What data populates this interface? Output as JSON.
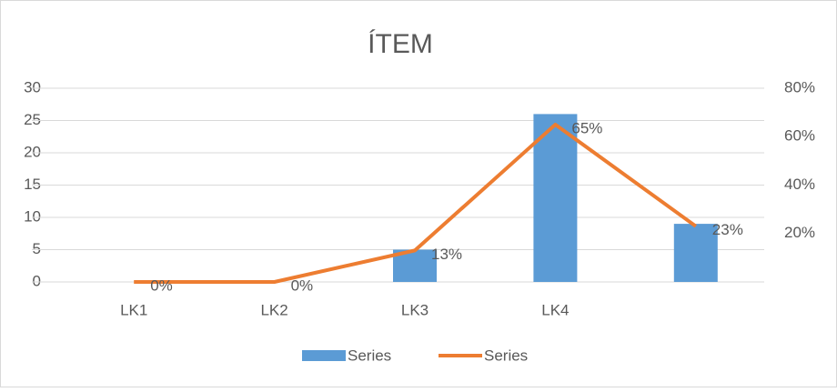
{
  "chart_data": {
    "type": "bar-line",
    "title": "ÍTEM",
    "categories": [
      "LK1",
      "LK2",
      "LK3",
      "LK4",
      null
    ],
    "series": [
      {
        "name": "Series",
        "type": "bar",
        "color": "#5b9bd5",
        "values": [
          0,
          0,
          5,
          26,
          9
        ]
      },
      {
        "name": "Series",
        "type": "line",
        "axis": "y2",
        "color": "#ed7d31",
        "values": [
          0,
          0,
          13,
          65,
          23
        ],
        "value_labels": [
          "0%",
          "0%",
          "13%",
          "65%",
          "23%"
        ]
      }
    ],
    "ylim": [
      0,
      30
    ],
    "yticks": [
      0,
      5,
      10,
      15,
      20,
      25,
      30
    ],
    "y2lim": [
      0,
      80
    ],
    "y2ticks": [
      {
        "value": 20,
        "label": "20%"
      },
      {
        "value": 40,
        "label": "40%"
      },
      {
        "value": 60,
        "label": "60%"
      },
      {
        "value": 80,
        "label": "80%"
      }
    ],
    "grid": true,
    "legend": "bottom"
  }
}
